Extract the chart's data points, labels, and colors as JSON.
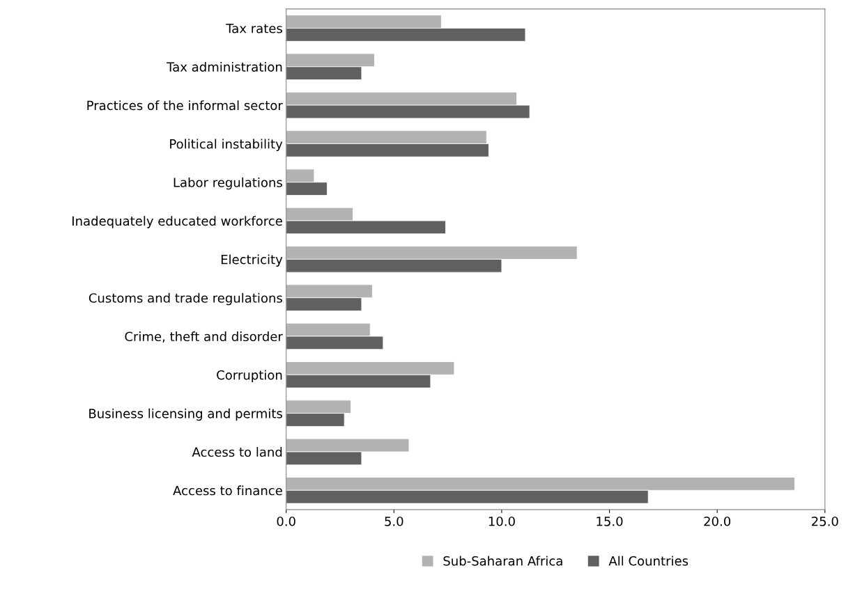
{
  "chart_data": {
    "type": "bar",
    "orientation": "horizontal",
    "categories": [
      "Tax rates",
      "Tax administration",
      "Practices of the informal sector",
      "Political instability",
      "Labor regulations",
      "Inadequately educated workforce",
      "Electricity",
      "Customs and trade regulations",
      "Crime, theft and disorder",
      "Corruption",
      "Business licensing and permits",
      "Access to land",
      "Access to finance"
    ],
    "series": [
      {
        "name": "Sub-Saharan Africa",
        "color": "#b2b2b2",
        "values": [
          7.2,
          4.1,
          10.7,
          9.3,
          1.3,
          3.1,
          13.5,
          4.0,
          3.9,
          7.8,
          3.0,
          5.7,
          23.6
        ]
      },
      {
        "name": "All Countries",
        "color": "#606060",
        "values": [
          11.1,
          3.5,
          11.3,
          9.4,
          1.9,
          7.4,
          10.0,
          3.5,
          4.5,
          6.7,
          2.7,
          3.5,
          16.8
        ]
      }
    ],
    "xlim": [
      0,
      25
    ],
    "xticks": [
      {
        "value": 0,
        "label": "0.0"
      },
      {
        "value": 5,
        "label": "5.0"
      },
      {
        "value": 10,
        "label": "10.0"
      },
      {
        "value": 15,
        "label": "15.0"
      },
      {
        "value": 20,
        "label": "20.0"
      },
      {
        "value": 25,
        "label": "25.0"
      }
    ],
    "grid": false,
    "legend": "bottom"
  }
}
